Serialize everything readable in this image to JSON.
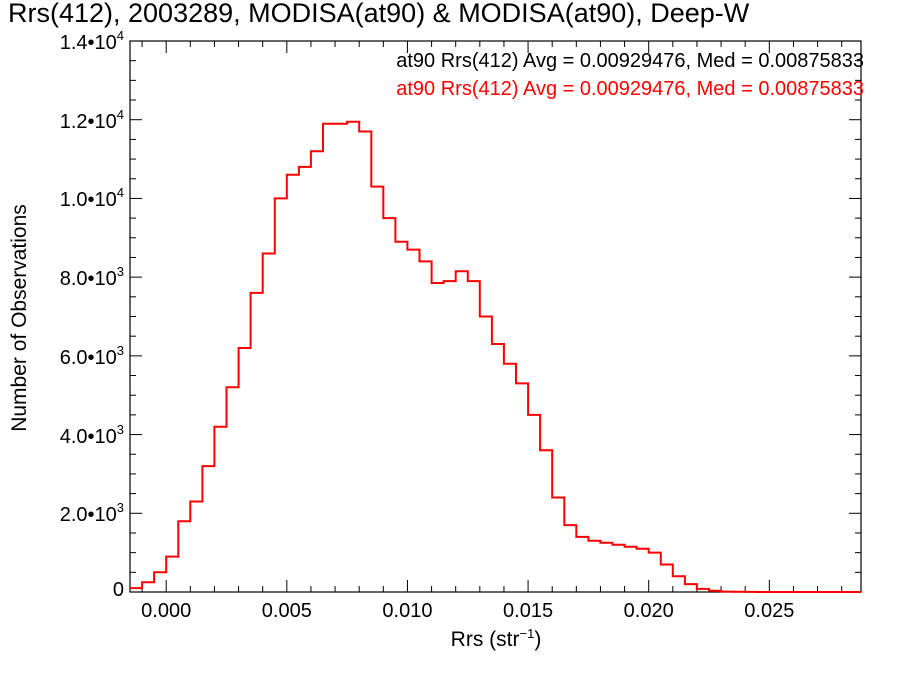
{
  "chart_data": {
    "type": "histogram",
    "title": "Rrs(412), 2003289, MODISA(at90) & MODISA(at90), Deep-W",
    "xlabel": "Rrs (str⁻¹)",
    "ylabel": "Number of Observations",
    "xlim": [
      -0.0015,
      0.0288
    ],
    "ylim": [
      0,
      14000
    ],
    "x_ticks": [
      0.0,
      0.005,
      0.01,
      0.015,
      0.02,
      0.025
    ],
    "x_tick_labels": [
      "0.000",
      "0.005",
      "0.010",
      "0.015",
      "0.020",
      "0.025"
    ],
    "y_ticks": [
      0,
      2000,
      4000,
      6000,
      8000,
      10000,
      12000,
      14000
    ],
    "y_tick_labels": [
      {
        "mantissa": "0",
        "exp": ""
      },
      {
        "mantissa": "2.0•10",
        "exp": "3"
      },
      {
        "mantissa": "4.0•10",
        "exp": "3"
      },
      {
        "mantissa": "6.0•10",
        "exp": "3"
      },
      {
        "mantissa": "8.0•10",
        "exp": "3"
      },
      {
        "mantissa": "1.0•10",
        "exp": "4"
      },
      {
        "mantissa": "1.2•10",
        "exp": "4"
      },
      {
        "mantissa": "1.4•10",
        "exp": "4"
      }
    ],
    "annotations": [
      {
        "text": "at90 Rrs(412) Avg = 0.00929476, Med = 0.00875833",
        "color": "#000000"
      },
      {
        "text": "at90 Rrs(412) Avg = 0.00929476, Med = 0.00875833",
        "color": "#ff0000"
      }
    ],
    "series": [
      {
        "color": "#ff0000",
        "style": "step",
        "x": [
          -0.0015,
          -0.001,
          -0.0005,
          0.0,
          0.0005,
          0.001,
          0.0015,
          0.002,
          0.0025,
          0.003,
          0.0035,
          0.004,
          0.0045,
          0.005,
          0.0055,
          0.006,
          0.0065,
          0.007,
          0.0075,
          0.008,
          0.0085,
          0.009,
          0.0095,
          0.01,
          0.0105,
          0.011,
          0.0115,
          0.012,
          0.0125,
          0.013,
          0.0135,
          0.014,
          0.0145,
          0.015,
          0.0155,
          0.016,
          0.0165,
          0.017,
          0.0175,
          0.018,
          0.0185,
          0.019,
          0.0195,
          0.02,
          0.0205,
          0.021,
          0.0215,
          0.022,
          0.0225,
          0.023,
          0.0235,
          0.024,
          0.0245,
          0.025,
          0.0255,
          0.026,
          0.0265,
          0.027,
          0.0275,
          0.028,
          0.0285
        ],
        "y": [
          100,
          250,
          500,
          900,
          1800,
          2300,
          3200,
          4200,
          5200,
          6200,
          7600,
          8600,
          10000,
          10600,
          10800,
          11200,
          11900,
          11900,
          11950,
          11700,
          10300,
          9500,
          8900,
          8700,
          8400,
          7850,
          7900,
          8150,
          7900,
          7000,
          6300,
          5800,
          5300,
          4500,
          3600,
          2400,
          1700,
          1400,
          1300,
          1250,
          1200,
          1150,
          1100,
          1000,
          700,
          400,
          200,
          80,
          30,
          10,
          5,
          2,
          0,
          0,
          0,
          0,
          0,
          0,
          0,
          0,
          0
        ]
      }
    ]
  }
}
